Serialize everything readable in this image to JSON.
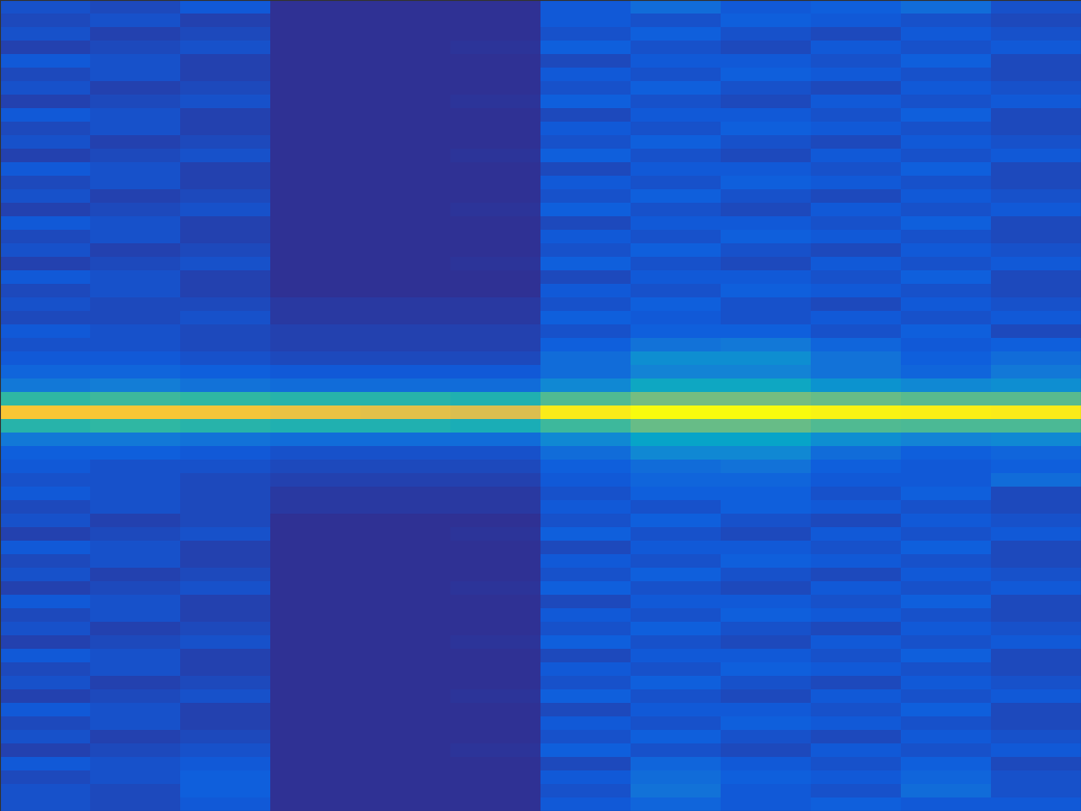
{
  "chart_data": {
    "type": "heatmap",
    "tick_labels": false,
    "color_range": [
      0,
      100
    ],
    "cells": [
      [
        10,
        8,
        12,
        2,
        2,
        2,
        12,
        18,
        12,
        14,
        18,
        10
      ],
      [
        8,
        10,
        6,
        2,
        2,
        2,
        12,
        10,
        14,
        12,
        10,
        8
      ],
      [
        10,
        6,
        8,
        2,
        2,
        2,
        10,
        14,
        10,
        8,
        12,
        10
      ],
      [
        6,
        8,
        10,
        2,
        2,
        3,
        14,
        10,
        8,
        12,
        10,
        12
      ],
      [
        12,
        10,
        6,
        2,
        2,
        2,
        8,
        12,
        12,
        10,
        14,
        8
      ],
      [
        8,
        10,
        6,
        2,
        2,
        2,
        12,
        10,
        14,
        12,
        10,
        8
      ],
      [
        10,
        6,
        8,
        2,
        2,
        2,
        10,
        14,
        10,
        8,
        12,
        10
      ],
      [
        6,
        8,
        10,
        2,
        2,
        3,
        14,
        10,
        8,
        12,
        10,
        12
      ],
      [
        12,
        10,
        6,
        2,
        2,
        2,
        8,
        12,
        12,
        10,
        14,
        8
      ],
      [
        8,
        10,
        6,
        2,
        2,
        2,
        12,
        10,
        14,
        12,
        10,
        8
      ],
      [
        10,
        6,
        8,
        2,
        2,
        2,
        10,
        14,
        10,
        8,
        12,
        10
      ],
      [
        6,
        8,
        10,
        2,
        2,
        3,
        14,
        10,
        8,
        12,
        10,
        12
      ],
      [
        12,
        10,
        6,
        2,
        2,
        2,
        8,
        12,
        12,
        10,
        14,
        8
      ],
      [
        8,
        10,
        6,
        2,
        2,
        2,
        12,
        10,
        14,
        12,
        10,
        8
      ],
      [
        10,
        6,
        8,
        2,
        2,
        2,
        10,
        14,
        10,
        8,
        12,
        10
      ],
      [
        6,
        8,
        10,
        2,
        2,
        3,
        14,
        10,
        8,
        12,
        10,
        12
      ],
      [
        12,
        10,
        6,
        2,
        2,
        2,
        8,
        12,
        12,
        10,
        14,
        8
      ],
      [
        8,
        10,
        6,
        2,
        2,
        2,
        12,
        10,
        14,
        12,
        10,
        8
      ],
      [
        10,
        6,
        8,
        2,
        2,
        2,
        10,
        14,
        10,
        8,
        12,
        10
      ],
      [
        6,
        8,
        10,
        2,
        2,
        3,
        14,
        10,
        8,
        12,
        10,
        12
      ],
      [
        12,
        10,
        6,
        2,
        2,
        2,
        8,
        12,
        12,
        10,
        14,
        8
      ],
      [
        8,
        10,
        6,
        2,
        2,
        2,
        12,
        10,
        14,
        12,
        10,
        8
      ],
      [
        10,
        8,
        8,
        4,
        4,
        4,
        10,
        14,
        10,
        8,
        12,
        10
      ],
      [
        8,
        8,
        10,
        4,
        4,
        4,
        14,
        12,
        10,
        12,
        10,
        12
      ],
      [
        12,
        10,
        8,
        6,
        6,
        6,
        10,
        14,
        14,
        10,
        14,
        8
      ],
      [
        10,
        10,
        8,
        6,
        6,
        6,
        14,
        20,
        22,
        16,
        12,
        14
      ],
      [
        12,
        12,
        10,
        8,
        8,
        8,
        18,
        30,
        30,
        20,
        14,
        18
      ],
      [
        16,
        16,
        14,
        12,
        12,
        12,
        18,
        26,
        26,
        20,
        16,
        22
      ],
      [
        22,
        24,
        20,
        18,
        18,
        18,
        28,
        40,
        40,
        32,
        28,
        30
      ],
      [
        50,
        52,
        50,
        48,
        48,
        46,
        55,
        60,
        60,
        58,
        56,
        56
      ],
      [
        86,
        86,
        85,
        82,
        80,
        78,
        96,
        100,
        100,
        98,
        97,
        96
      ],
      [
        48,
        50,
        48,
        46,
        46,
        44,
        52,
        58,
        58,
        55,
        54,
        54
      ],
      [
        22,
        22,
        20,
        18,
        18,
        18,
        28,
        38,
        38,
        30,
        26,
        28
      ],
      [
        14,
        14,
        12,
        10,
        10,
        10,
        18,
        28,
        28,
        18,
        14,
        16
      ],
      [
        12,
        10,
        10,
        8,
        8,
        8,
        14,
        18,
        20,
        14,
        12,
        14
      ],
      [
        10,
        10,
        8,
        6,
        6,
        6,
        12,
        16,
        16,
        12,
        12,
        18
      ],
      [
        12,
        10,
        8,
        4,
        4,
        4,
        10,
        14,
        14,
        10,
        14,
        8
      ],
      [
        8,
        10,
        8,
        4,
        4,
        4,
        12,
        10,
        14,
        12,
        10,
        8
      ],
      [
        10,
        6,
        8,
        2,
        2,
        2,
        10,
        14,
        10,
        8,
        12,
        10
      ],
      [
        6,
        8,
        10,
        2,
        2,
        3,
        14,
        10,
        8,
        12,
        10,
        12
      ],
      [
        12,
        10,
        6,
        2,
        2,
        2,
        8,
        12,
        12,
        10,
        14,
        8
      ],
      [
        8,
        10,
        6,
        2,
        2,
        2,
        12,
        10,
        14,
        12,
        10,
        8
      ],
      [
        10,
        6,
        8,
        2,
        2,
        2,
        10,
        14,
        10,
        8,
        12,
        10
      ],
      [
        6,
        8,
        10,
        2,
        2,
        3,
        14,
        10,
        8,
        12,
        10,
        12
      ],
      [
        12,
        10,
        6,
        2,
        2,
        2,
        8,
        12,
        12,
        10,
        14,
        8
      ],
      [
        8,
        10,
        6,
        2,
        2,
        2,
        12,
        10,
        14,
        12,
        10,
        8
      ],
      [
        10,
        6,
        8,
        2,
        2,
        2,
        10,
        14,
        10,
        8,
        12,
        10
      ],
      [
        6,
        8,
        10,
        2,
        2,
        3,
        14,
        10,
        8,
        12,
        10,
        12
      ],
      [
        12,
        10,
        6,
        2,
        2,
        2,
        8,
        12,
        12,
        10,
        14,
        8
      ],
      [
        8,
        10,
        6,
        2,
        2,
        2,
        12,
        10,
        14,
        12,
        10,
        8
      ],
      [
        10,
        6,
        8,
        2,
        2,
        2,
        10,
        14,
        10,
        8,
        12,
        10
      ],
      [
        6,
        8,
        10,
        2,
        2,
        3,
        14,
        10,
        8,
        12,
        10,
        12
      ],
      [
        12,
        10,
        6,
        2,
        2,
        2,
        8,
        12,
        12,
        10,
        14,
        8
      ],
      [
        8,
        10,
        6,
        2,
        2,
        2,
        12,
        10,
        14,
        12,
        10,
        8
      ],
      [
        10,
        6,
        8,
        2,
        2,
        2,
        10,
        14,
        10,
        8,
        12,
        10
      ],
      [
        6,
        8,
        10,
        2,
        2,
        3,
        14,
        10,
        8,
        12,
        10,
        12
      ],
      [
        12,
        10,
        12,
        2,
        2,
        2,
        8,
        16,
        12,
        10,
        14,
        8
      ],
      [
        8,
        10,
        14,
        2,
        2,
        2,
        12,
        18,
        14,
        12,
        16,
        10
      ],
      [
        10,
        8,
        14,
        2,
        2,
        2,
        10,
        20,
        12,
        10,
        18,
        10
      ],
      [
        10,
        8,
        12,
        2,
        2,
        2,
        12,
        16,
        12,
        14,
        12,
        12
      ]
    ]
  }
}
